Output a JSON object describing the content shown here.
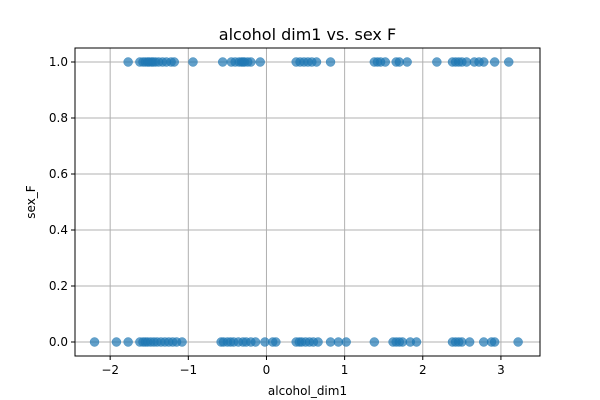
{
  "chart_data": {
    "type": "scatter",
    "title": "alcohol dim1 vs. sex F",
    "xlabel": "alcohol_dim1",
    "ylabel": "sex_F",
    "xlim": [
      -2.45,
      3.5
    ],
    "ylim": [
      -0.05,
      1.05
    ],
    "xticks": [
      -2,
      -1,
      0,
      1,
      2,
      3
    ],
    "xtick_labels": [
      "−2",
      "−1",
      "0",
      "1",
      "2",
      "3"
    ],
    "yticks": [
      0.0,
      0.2,
      0.4,
      0.6,
      0.8,
      1.0
    ],
    "ytick_labels": [
      "0.0",
      "0.2",
      "0.4",
      "0.6",
      "0.8",
      "1.0"
    ],
    "grid": true,
    "marker_color": "#1f77b4",
    "marker_alpha": 0.7,
    "series": [
      {
        "x": [
          -1.77,
          -1.62,
          -1.58,
          -1.55,
          -1.52,
          -1.5,
          -1.47,
          -1.45,
          -1.42,
          -1.38,
          -1.33,
          -1.28,
          -1.22,
          -1.18,
          -0.94,
          -0.56,
          -0.45,
          -0.4,
          -0.35,
          -0.32,
          -0.3,
          -0.28,
          -0.24,
          -0.2,
          -0.08,
          0.38,
          0.43,
          0.48,
          0.53,
          0.58,
          0.64,
          0.82,
          1.38,
          1.42,
          1.46,
          1.52,
          1.66,
          1.7,
          1.8,
          2.18,
          2.38,
          2.42,
          2.46,
          2.5,
          2.56,
          2.66,
          2.72,
          2.78,
          2.92,
          3.1
        ],
        "y": [
          1,
          1,
          1,
          1,
          1,
          1,
          1,
          1,
          1,
          1,
          1,
          1,
          1,
          1,
          1,
          1,
          1,
          1,
          1,
          1,
          1,
          1,
          1,
          1,
          1,
          1,
          1,
          1,
          1,
          1,
          1,
          1,
          1,
          1,
          1,
          1,
          1,
          1,
          1,
          1,
          1,
          1,
          1,
          1,
          1,
          1,
          1,
          1,
          1,
          1
        ]
      },
      {
        "x": [
          -2.2,
          -1.92,
          -1.77,
          -1.62,
          -1.58,
          -1.55,
          -1.52,
          -1.48,
          -1.44,
          -1.4,
          -1.35,
          -1.3,
          -1.25,
          -1.2,
          -1.15,
          -1.08,
          -0.58,
          -0.55,
          -0.5,
          -0.46,
          -0.42,
          -0.36,
          -0.3,
          -0.26,
          -0.2,
          -0.14,
          -0.02,
          0.08,
          0.12,
          0.38,
          0.42,
          0.45,
          0.5,
          0.55,
          0.6,
          0.66,
          0.82,
          0.92,
          1.02,
          1.38,
          1.62,
          1.66,
          1.7,
          1.74,
          1.84,
          1.92,
          2.38,
          2.42,
          2.46,
          2.5,
          2.6,
          2.78,
          2.88,
          2.92,
          3.22
        ],
        "y": [
          0,
          0,
          0,
          0,
          0,
          0,
          0,
          0,
          0,
          0,
          0,
          0,
          0,
          0,
          0,
          0,
          0,
          0,
          0,
          0,
          0,
          0,
          0,
          0,
          0,
          0,
          0,
          0,
          0,
          0,
          0,
          0,
          0,
          0,
          0,
          0,
          0,
          0,
          0,
          0,
          0,
          0,
          0,
          0,
          0,
          0,
          0,
          0,
          0,
          0,
          0,
          0,
          0,
          0,
          0
        ]
      }
    ]
  }
}
